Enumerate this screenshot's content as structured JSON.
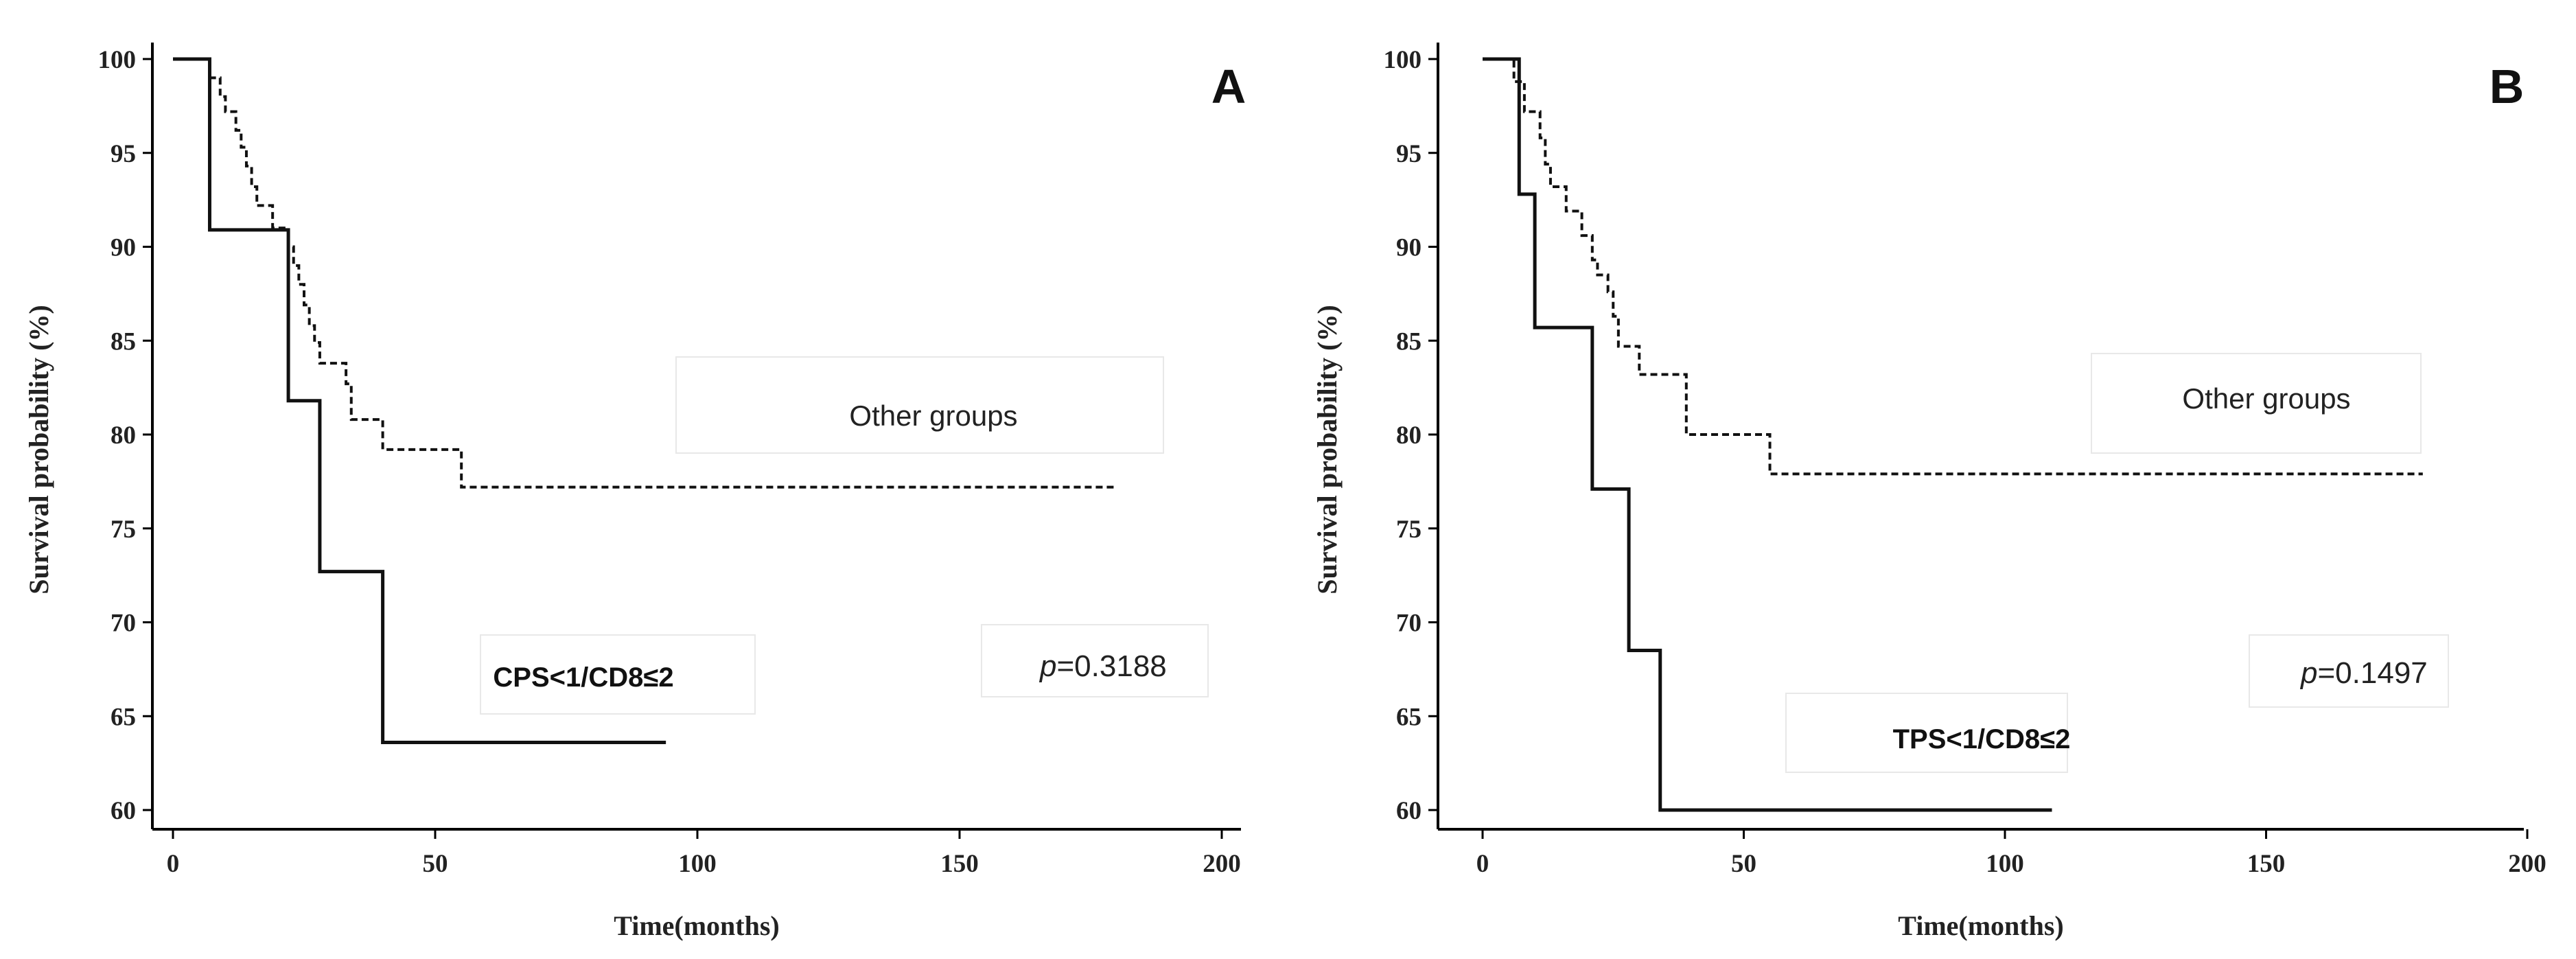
{
  "chart_data": [
    {
      "panel": "A",
      "type": "line",
      "subtype": "kaplan-meier",
      "xlabel": "Time(months)",
      "ylabel": "Survival probability (%)",
      "xlim": [
        0,
        200
      ],
      "ylim": [
        60,
        100
      ],
      "xticks": [
        0,
        50,
        100,
        150,
        200
      ],
      "yticks": [
        60,
        65,
        70,
        75,
        80,
        85,
        90,
        95,
        100
      ],
      "p_label": "p",
      "p_value": "=0.3188",
      "series": [
        {
          "name": "Other groups",
          "style": "dashed",
          "steps": [
            [
              0,
              100
            ],
            [
              7,
              99
            ],
            [
              9,
              98
            ],
            [
              10,
              97.2
            ],
            [
              12,
              96.2
            ],
            [
              13,
              95.3
            ],
            [
              14,
              94.3
            ],
            [
              15,
              93.2
            ],
            [
              16,
              92.2
            ],
            [
              19,
              91
            ],
            [
              22,
              90
            ],
            [
              23,
              89
            ],
            [
              24,
              88
            ],
            [
              25,
              86.9
            ],
            [
              26,
              85.8
            ],
            [
              27,
              84.9
            ],
            [
              28,
              83.8
            ],
            [
              33,
              82.7
            ],
            [
              34,
              80.8
            ],
            [
              40,
              79.2
            ],
            [
              55,
              77.2
            ],
            [
              180,
              77.2
            ]
          ]
        },
        {
          "name": "CPS<1/CD8≤2",
          "style": "solid",
          "steps": [
            [
              0,
              100
            ],
            [
              7,
              90.9
            ],
            [
              22,
              81.8
            ],
            [
              28,
              72.7
            ],
            [
              40,
              63.6
            ],
            [
              94,
              63.6
            ]
          ]
        }
      ]
    },
    {
      "panel": "B",
      "type": "line",
      "subtype": "kaplan-meier",
      "xlabel": "Time(months)",
      "ylabel": "Survival probability (%)",
      "xlim": [
        0,
        200
      ],
      "ylim": [
        60,
        100
      ],
      "xticks": [
        0,
        50,
        100,
        150,
        200
      ],
      "yticks": [
        60,
        65,
        70,
        75,
        80,
        85,
        90,
        95,
        100
      ],
      "p_label": "p",
      "p_value": "=0.1497",
      "series": [
        {
          "name": "Other groups",
          "style": "dashed",
          "steps": [
            [
              0,
              100
            ],
            [
              6,
              98.8
            ],
            [
              8,
              97.2
            ],
            [
              11,
              95.8
            ],
            [
              12,
              94.4
            ],
            [
              13,
              93.2
            ],
            [
              16,
              91.9
            ],
            [
              19,
              90.6
            ],
            [
              21,
              89.3
            ],
            [
              22,
              88.5
            ],
            [
              24,
              87.6
            ],
            [
              25,
              86.3
            ],
            [
              26,
              84.7
            ],
            [
              29,
              84.7
            ],
            [
              30,
              83.2
            ],
            [
              39,
              80
            ],
            [
              55,
              77.9
            ],
            [
              180,
              77.9
            ]
          ]
        },
        {
          "name": "TPS<1/CD8≤2",
          "style": "solid",
          "steps": [
            [
              0,
              100
            ],
            [
              7,
              92.8
            ],
            [
              10,
              85.7
            ],
            [
              21,
              77.1
            ],
            [
              28,
              68.5
            ],
            [
              34,
              60
            ],
            [
              109,
              60
            ]
          ]
        }
      ]
    }
  ]
}
